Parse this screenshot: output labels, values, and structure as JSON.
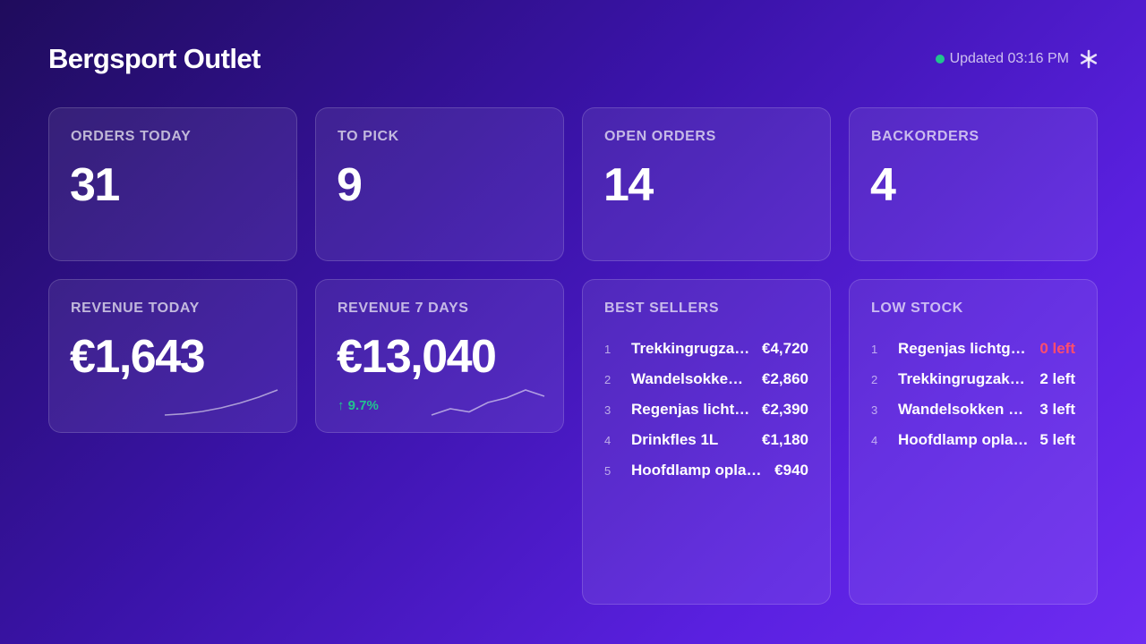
{
  "header": {
    "title": "Bergsport Outlet",
    "status": "Updated 03:16 PM"
  },
  "kpis": [
    {
      "label": "ORDERS TODAY",
      "value": "31"
    },
    {
      "label": "TO PICK",
      "value": "9"
    },
    {
      "label": "OPEN ORDERS",
      "value": "14"
    },
    {
      "label": "BACKORDERS",
      "value": "4"
    }
  ],
  "revenue": [
    {
      "label": "REVENUE TODAY",
      "value": "€1,643",
      "sparkline": [
        0,
        1,
        3,
        6,
        10,
        15,
        21
      ]
    },
    {
      "label": "REVENUE 7 DAYS",
      "value": "€13,040",
      "change": "↑ 9.7%",
      "sparkline": [
        0,
        4,
        2,
        8,
        11,
        16,
        12
      ]
    }
  ],
  "best_sellers": {
    "title": "BEST SELLERS",
    "items": [
      {
        "rank": 1,
        "name": "Trekkingrugza…",
        "value": "€4,720"
      },
      {
        "rank": 2,
        "name": "Wandelsokke…",
        "value": "€2,860"
      },
      {
        "rank": 3,
        "name": "Regenjas licht…",
        "value": "€2,390"
      },
      {
        "rank": 4,
        "name": "Drinkfles 1L",
        "value": "€1,180"
      },
      {
        "rank": 5,
        "name": "Hoofdlamp opla…",
        "value": "€940"
      }
    ]
  },
  "low_stock": {
    "title": "LOW STOCK",
    "items": [
      {
        "rank": 1,
        "name": "Regenjas lichtg…",
        "value": "0 left",
        "alert": true
      },
      {
        "rank": 2,
        "name": "Trekkingrugzak…",
        "value": "2 left",
        "alert": false
      },
      {
        "rank": 3,
        "name": "Wandelsokken …",
        "value": "3 left",
        "alert": false
      },
      {
        "rank": 4,
        "name": "Hoofdlamp opla…",
        "value": "5 left",
        "alert": false
      }
    ]
  }
}
